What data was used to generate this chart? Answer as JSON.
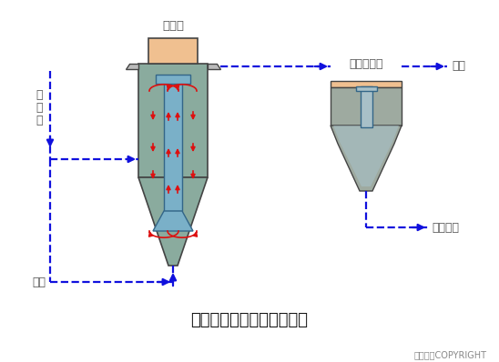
{
  "title": "三相生物流化床的工艺流程",
  "copyright": "东方仿真COPYRIGHT",
  "label_liuhuachuang": "流化床",
  "label_erci": "二次沉淀池",
  "label_chushui": "出水",
  "label_wuranshui": "原\n污\n水",
  "label_kongqi": "空气",
  "label_wuranpaifang": "污泥排放",
  "bg_color": "#ffffff",
  "tank_color": "#8aab9e",
  "tank_edge_color": "#444444",
  "inner_tube_color": "#7ab0c8",
  "top_cap_color": "#f0c090",
  "settler_color": "#9eaaa0",
  "settler_inner_color": "#a8c0c8",
  "flange_color": "#bbbbbb",
  "arrow_blue": "#1010dd",
  "arrow_red": "#dd1010",
  "gray_text": "#555555",
  "title_fontsize": 13,
  "label_fontsize": 9,
  "copy_fontsize": 7
}
